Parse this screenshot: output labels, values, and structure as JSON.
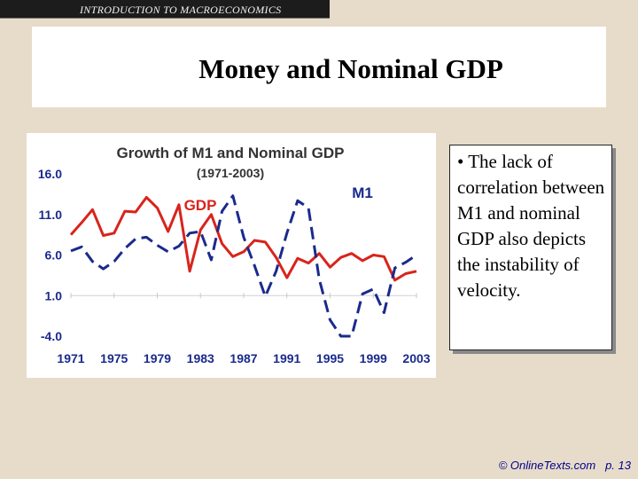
{
  "header": {
    "banner_text": "INTRODUCTION TO MACROECONOMICS"
  },
  "slide": {
    "title": "Money and Nominal GDP",
    "bullet": "• The lack of correlation between M1 and nominal GDP also depicts the instability of velocity."
  },
  "footer": {
    "copyright": "© OnlineTexts.com",
    "page": "p. 13"
  },
  "colors": {
    "gdp": "#d8241c",
    "m1": "#1a2a8c",
    "background": "#e7dcca"
  },
  "chart_data": {
    "type": "line",
    "title": "Growth of M1 and Nominal GDP",
    "subtitle": "(1971-2003)",
    "xlabel": "",
    "ylabel": "",
    "ylim": [
      -4.0,
      16.0
    ],
    "y_ticks": [
      "16.0",
      "11.0",
      "6.0",
      "1.0",
      "-4.0"
    ],
    "y_tick_values": [
      16.0,
      11.0,
      6.0,
      1.0,
      -4.0
    ],
    "x_ticks": [
      "1971",
      "1975",
      "1979",
      "1983",
      "1987",
      "1991",
      "1995",
      "1999",
      "2003"
    ],
    "x_tick_values": [
      1971,
      1975,
      1979,
      1983,
      1987,
      1991,
      1995,
      1999,
      2003
    ],
    "series": [
      {
        "name": "GDP",
        "style": "solid",
        "x": [
          1971,
          1972,
          1973,
          1974,
          1975,
          1976,
          1977,
          1978,
          1979,
          1980,
          1981,
          1982,
          1983,
          1984,
          1985,
          1986,
          1987,
          1988,
          1989,
          1990,
          1991,
          1992,
          1993,
          1994,
          1995,
          1996,
          1997,
          1998,
          1999,
          2000,
          2001,
          2002,
          2003
        ],
        "values": [
          8.5,
          10.0,
          11.6,
          8.4,
          8.7,
          11.4,
          11.3,
          13.1,
          11.8,
          8.9,
          12.2,
          4.0,
          9.1,
          11.0,
          7.4,
          5.8,
          6.4,
          7.8,
          7.6,
          5.7,
          3.2,
          5.6,
          5.0,
          6.2,
          4.5,
          5.7,
          6.2,
          5.3,
          6.0,
          5.8,
          2.9,
          3.7,
          4.0
        ]
      },
      {
        "name": "M1",
        "style": "dashed",
        "x": [
          1971,
          1972,
          1973,
          1974,
          1975,
          1976,
          1977,
          1978,
          1979,
          1980,
          1981,
          1982,
          1983,
          1984,
          1985,
          1986,
          1987,
          1988,
          1989,
          1990,
          1991,
          1992,
          1993,
          1994,
          1995,
          1996,
          1997,
          1998,
          1999,
          2000,
          2001,
          2002,
          2003
        ],
        "values": [
          6.5,
          7.0,
          5.2,
          4.3,
          5.2,
          6.8,
          8.0,
          8.2,
          7.2,
          6.4,
          7.1,
          8.7,
          8.9,
          5.4,
          11.4,
          13.3,
          8.2,
          4.7,
          0.9,
          4.0,
          8.7,
          12.7,
          11.8,
          3.0,
          -2.0,
          -4.0,
          -4.0,
          1.2,
          1.8,
          -1.1,
          4.4,
          5.1,
          6.0
        ]
      }
    ],
    "labels": [
      "GDP",
      "M1"
    ]
  }
}
